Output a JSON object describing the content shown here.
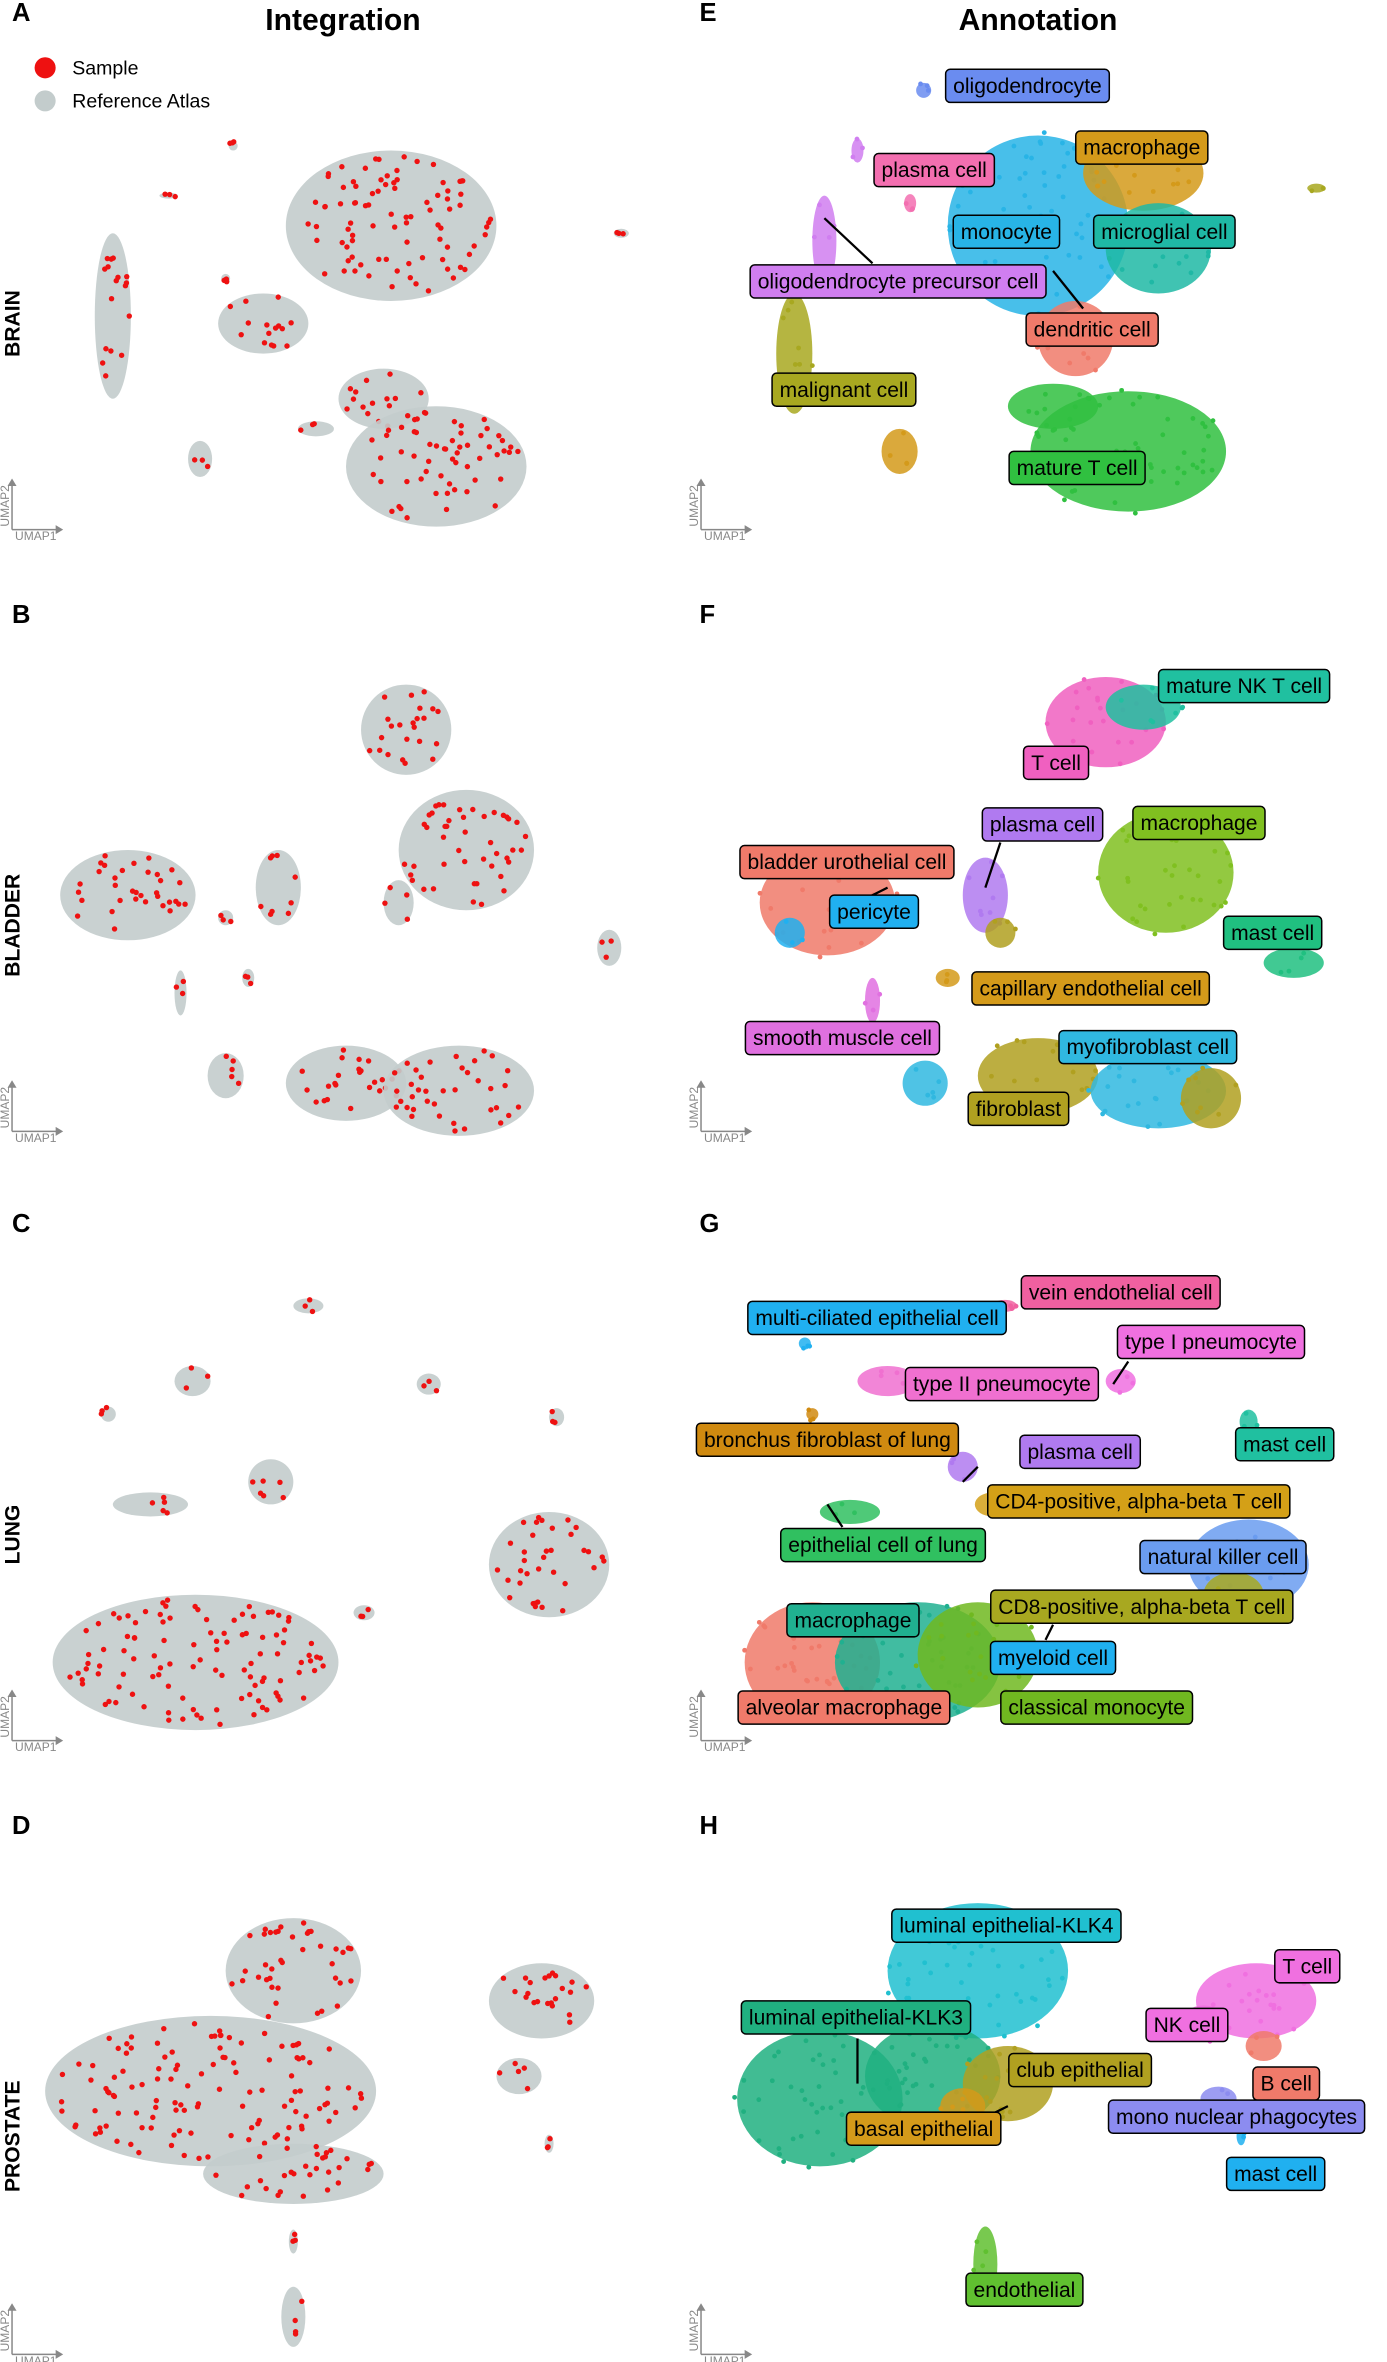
{
  "titles": {
    "left": "Integration",
    "right": "Annotation"
  },
  "legend": [
    {
      "label": "Sample",
      "color": "#ee1111"
    },
    {
      "label": "Reference Atlas",
      "color": "#c3cccc"
    }
  ],
  "axis_labels": {
    "x": "UMAP1",
    "y": "UMAP2"
  },
  "rows": [
    {
      "tissue": "BRAIN",
      "left_panel": "A",
      "right_panel": "E",
      "cell_types": [
        {
          "label": "oligodendrocyte",
          "color": "#6a8cf0"
        },
        {
          "label": "macrophage",
          "color": "#d49a1a"
        },
        {
          "label": "plasma cell",
          "color": "#f36fb0"
        },
        {
          "label": "monocyte",
          "color": "#28b4e6"
        },
        {
          "label": "microglial cell",
          "color": "#1fb8a5"
        },
        {
          "label": "oligodendrocyte precursor cell",
          "color": "#d07ef0"
        },
        {
          "label": "dendritic cell",
          "color": "#f07a6a"
        },
        {
          "label": "malignant cell",
          "color": "#a8a820"
        },
        {
          "label": "mature T cell",
          "color": "#30c040"
        }
      ]
    },
    {
      "tissue": "BLADDER",
      "left_panel": "B",
      "right_panel": "F",
      "cell_types": [
        {
          "label": "mature NK T cell",
          "color": "#20c0a0"
        },
        {
          "label": "T cell",
          "color": "#f060c0"
        },
        {
          "label": "plasma cell",
          "color": "#b07af0"
        },
        {
          "label": "macrophage",
          "color": "#80c020"
        },
        {
          "label": "bladder urothelial cell",
          "color": "#f07a6a"
        },
        {
          "label": "pericyte",
          "color": "#20b0f0"
        },
        {
          "label": "mast cell",
          "color": "#20c080"
        },
        {
          "label": "capillary endothelial cell",
          "color": "#d49a1a"
        },
        {
          "label": "smooth muscle cell",
          "color": "#e070e0"
        },
        {
          "label": "myofibroblast cell",
          "color": "#30b8e0"
        },
        {
          "label": "fibroblast",
          "color": "#b0a020"
        }
      ]
    },
    {
      "tissue": "LUNG",
      "left_panel": "C",
      "right_panel": "G",
      "cell_types": [
        {
          "label": "vein endothelial cell",
          "color": "#f060a0"
        },
        {
          "label": "multi-ciliated epithelial cell",
          "color": "#20b0f0"
        },
        {
          "label": "type I pneumocyte",
          "color": "#f070e0"
        },
        {
          "label": "type II pneumocyte",
          "color": "#f070d0"
        },
        {
          "label": "bronchus fibroblast of lung",
          "color": "#d08a10"
        },
        {
          "label": "plasma cell",
          "color": "#b07af0"
        },
        {
          "label": "mast cell",
          "color": "#20c0a0"
        },
        {
          "label": "CD4-positive, alpha-beta T cell",
          "color": "#d4a017"
        },
        {
          "label": "epithelial cell of lung",
          "color": "#30c060"
        },
        {
          "label": "natural killer cell",
          "color": "#6a9cf0"
        },
        {
          "label": "CD8-positive, alpha-beta T cell",
          "color": "#a8a820"
        },
        {
          "label": "macrophage",
          "color": "#20b090"
        },
        {
          "label": "myeloid cell",
          "color": "#20b0f0"
        },
        {
          "label": "alveolar macrophage",
          "color": "#f07a6a"
        },
        {
          "label": "classical monocyte",
          "color": "#70b820"
        }
      ]
    },
    {
      "tissue": "PROSTATE",
      "left_panel": "D",
      "right_panel": "H",
      "cell_types": [
        {
          "label": "luminal epithelial-KLK4",
          "color": "#20c0d0"
        },
        {
          "label": "T cell",
          "color": "#f070e0"
        },
        {
          "label": "luminal epithelial-KLK3",
          "color": "#20b080"
        },
        {
          "label": "NK cell",
          "color": "#f070e0"
        },
        {
          "label": "B cell",
          "color": "#f07a6a"
        },
        {
          "label": "club epithelial",
          "color": "#b0a020"
        },
        {
          "label": "basal epithelial",
          "color": "#d49a1a"
        },
        {
          "label": "mono nuclear phagocytes",
          "color": "#8c8cf0"
        },
        {
          "label": "mast cell",
          "color": "#20b0f0"
        },
        {
          "label": "endothelial",
          "color": "#60c030"
        }
      ]
    }
  ]
}
